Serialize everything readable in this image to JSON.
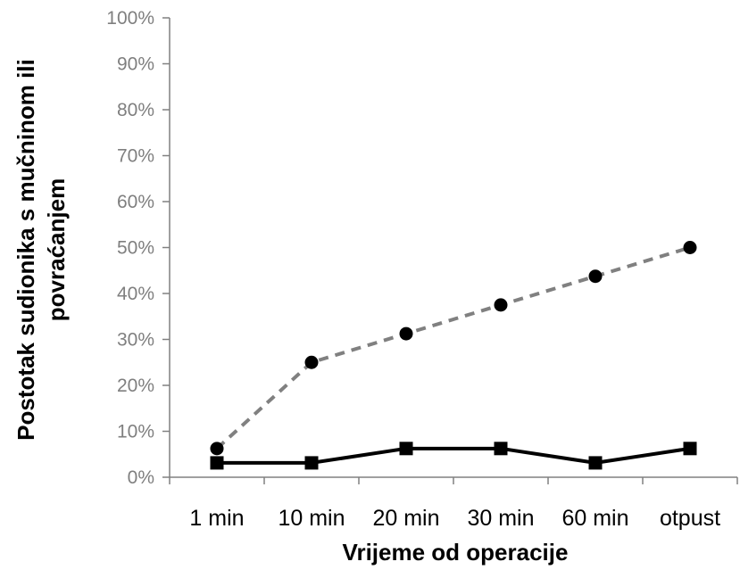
{
  "chart_data": {
    "type": "line",
    "categories": [
      "1 min",
      "10 min",
      "20 min",
      "30 min",
      "60 min",
      "otpust"
    ],
    "series": [
      {
        "values": [
          6.25,
          25,
          31.25,
          37.5,
          43.75,
          50
        ],
        "color": "#808080",
        "line_style": "dashed",
        "marker": "circle"
      },
      {
        "values": [
          3.125,
          3.125,
          6.25,
          6.25,
          3.125,
          6.25
        ],
        "color": "#000000",
        "line_style": "solid",
        "marker": "square"
      }
    ],
    "ylim": [
      0,
      100
    ],
    "y_ticks": [
      "0%",
      "10%",
      "20%",
      "30%",
      "40%",
      "50%",
      "60%",
      "70%",
      "80%",
      "90%",
      "100%"
    ],
    "xlabel": "Vrijeme od operacije",
    "ylabel_lines": [
      "Postotak sudionika s mučninom ili",
      "povraćanjem"
    ],
    "grid": false,
    "legend": "none"
  }
}
